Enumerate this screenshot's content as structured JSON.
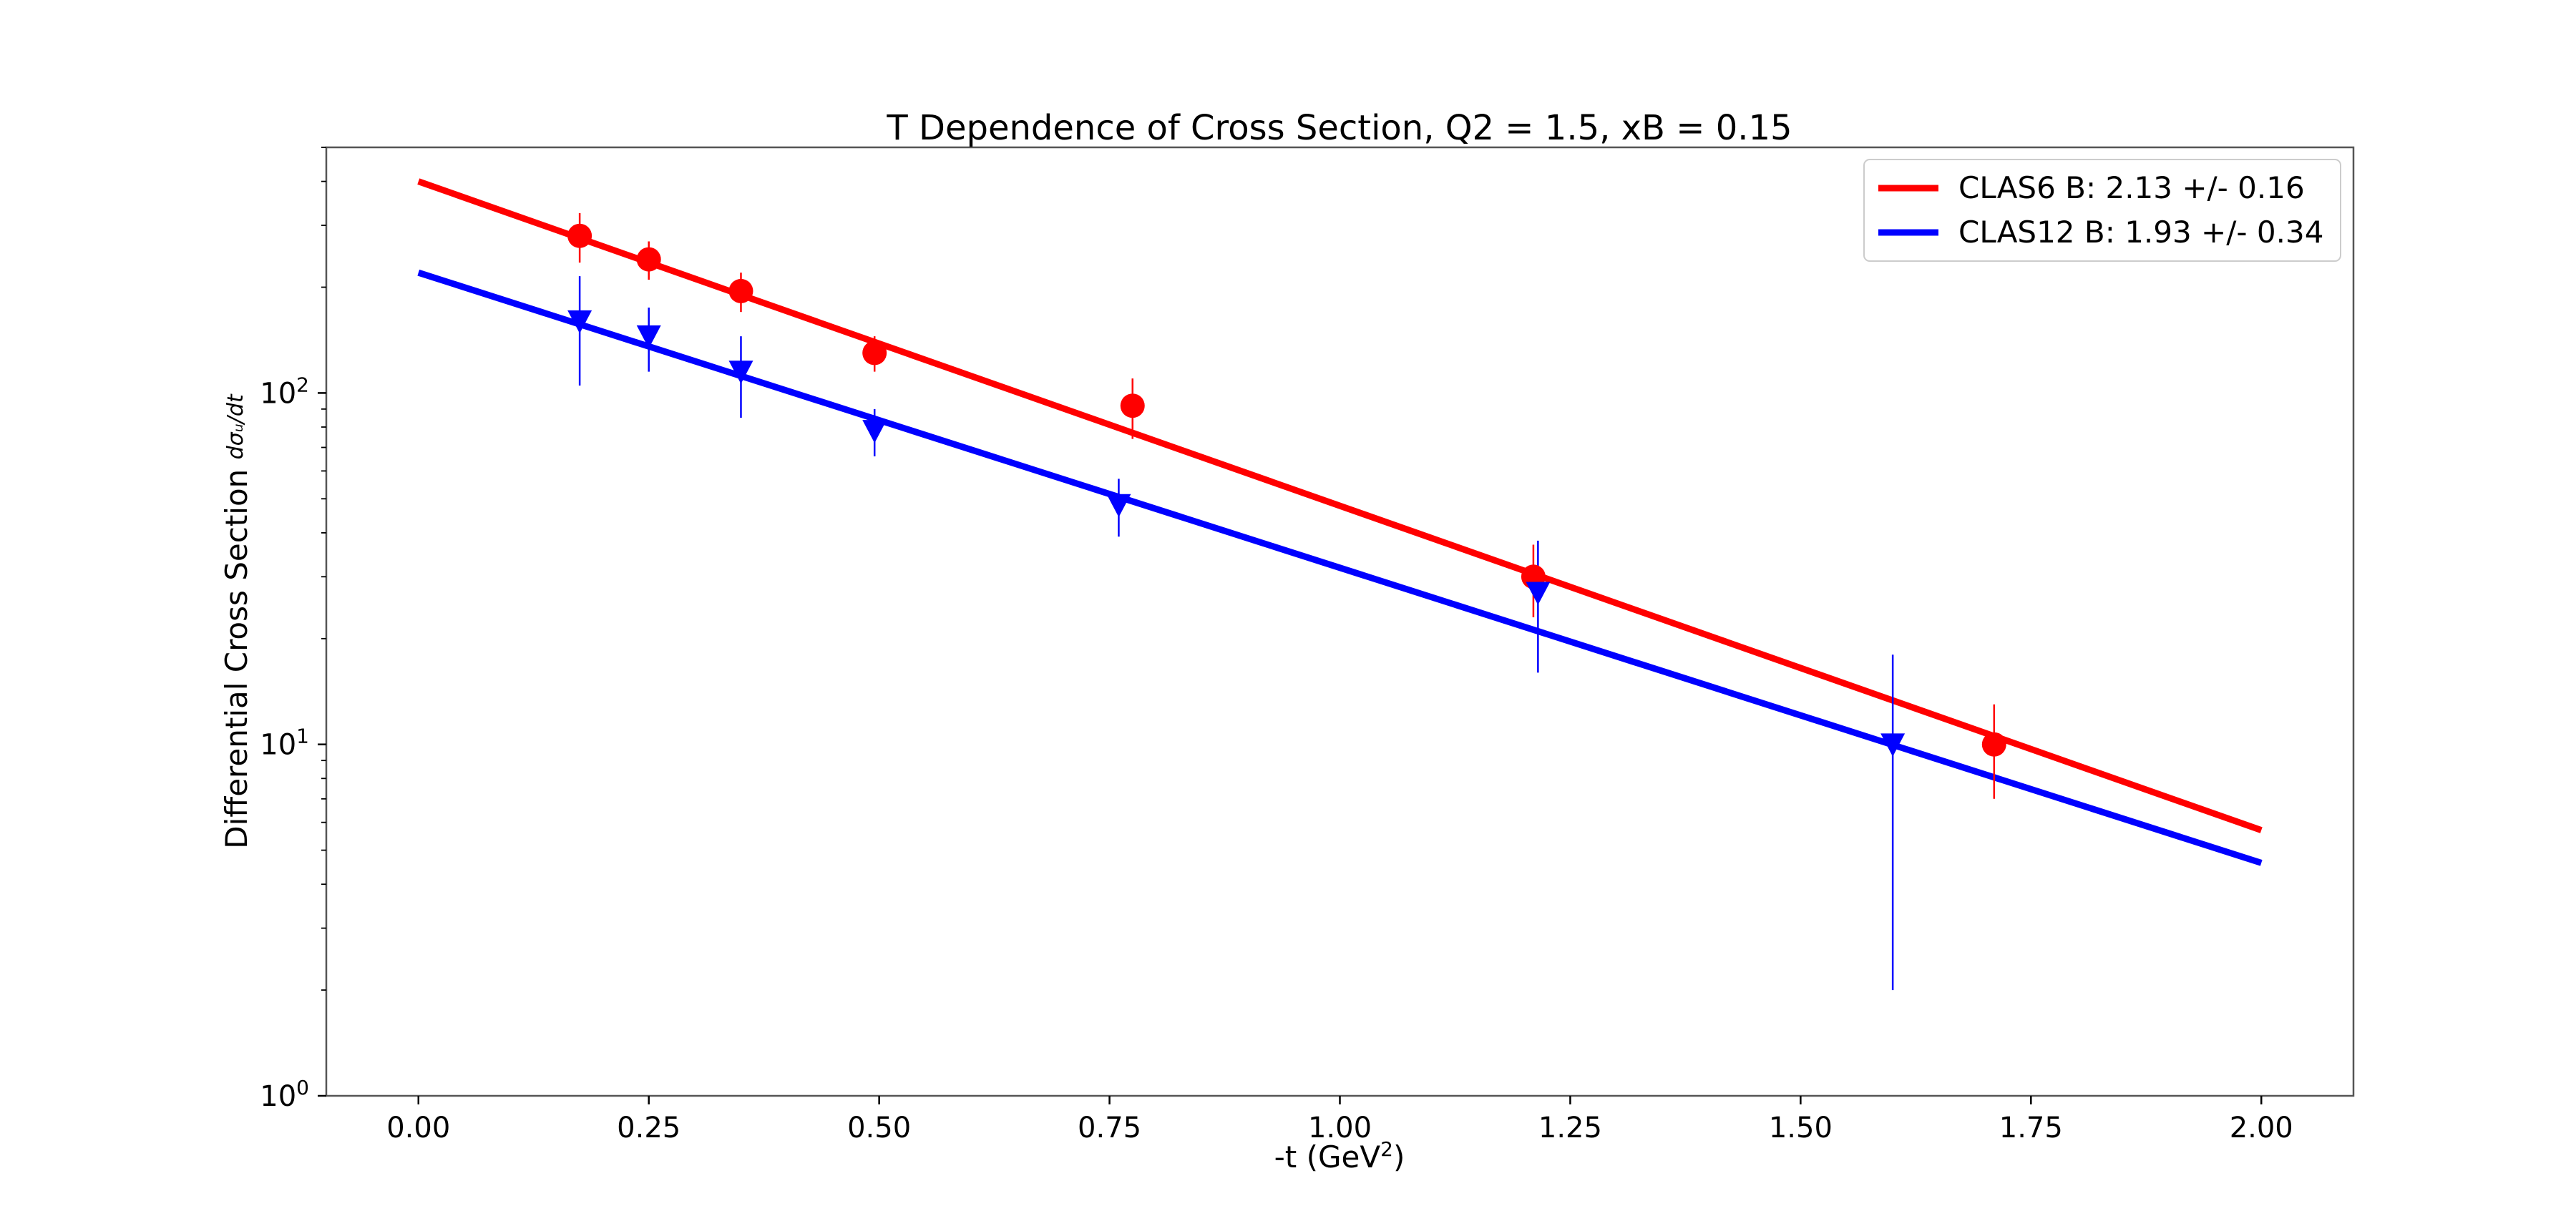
{
  "chart_data": {
    "type": "scatter",
    "title": "T Dependence of Cross Section, Q2 = 1.5, xB = 0.15",
    "xlabel": "-t (GeV²)",
    "ylabel": "Differential Cross Section dσ_U/dt",
    "yscale": "log",
    "xlim": [
      -0.1,
      2.1
    ],
    "ylim": [
      1,
      500
    ],
    "x_ticks": [
      "0.00",
      "0.25",
      "0.50",
      "0.75",
      "1.00",
      "1.25",
      "1.50",
      "1.75",
      "2.00"
    ],
    "y_ticks": [
      "10^0",
      "10^1",
      "10^2"
    ],
    "grid": false,
    "legend_position": "top-right",
    "fit_lines": [
      {
        "name": "CLAS6 B: 2.13 +/- 0.16",
        "color": "#ff0000",
        "x": [
          0,
          2.0
        ],
        "y": [
          400,
          5.7
        ]
      },
      {
        "name": "CLAS12 B: 1.93 +/- 0.34",
        "color": "#0000ff",
        "x": [
          0,
          2.0
        ],
        "y": [
          220,
          4.6
        ]
      }
    ],
    "series": [
      {
        "color": "#ff0000",
        "marker": "circle",
        "x": [
          0.175,
          0.25,
          0.35,
          0.495,
          0.775,
          1.21,
          1.71
        ],
        "y": [
          280,
          240,
          195,
          130,
          92,
          30,
          10
        ],
        "yerr": [
          45,
          30,
          25,
          15,
          18,
          7,
          3
        ]
      },
      {
        "color": "#0000ff",
        "marker": "triangle-down",
        "x": [
          0.175,
          0.25,
          0.35,
          0.495,
          0.76,
          1.215,
          1.6
        ],
        "y": [
          160,
          145,
          115,
          78,
          48,
          27,
          10
        ],
        "yerr": [
          55,
          30,
          30,
          12,
          9,
          11,
          8
        ]
      }
    ]
  }
}
